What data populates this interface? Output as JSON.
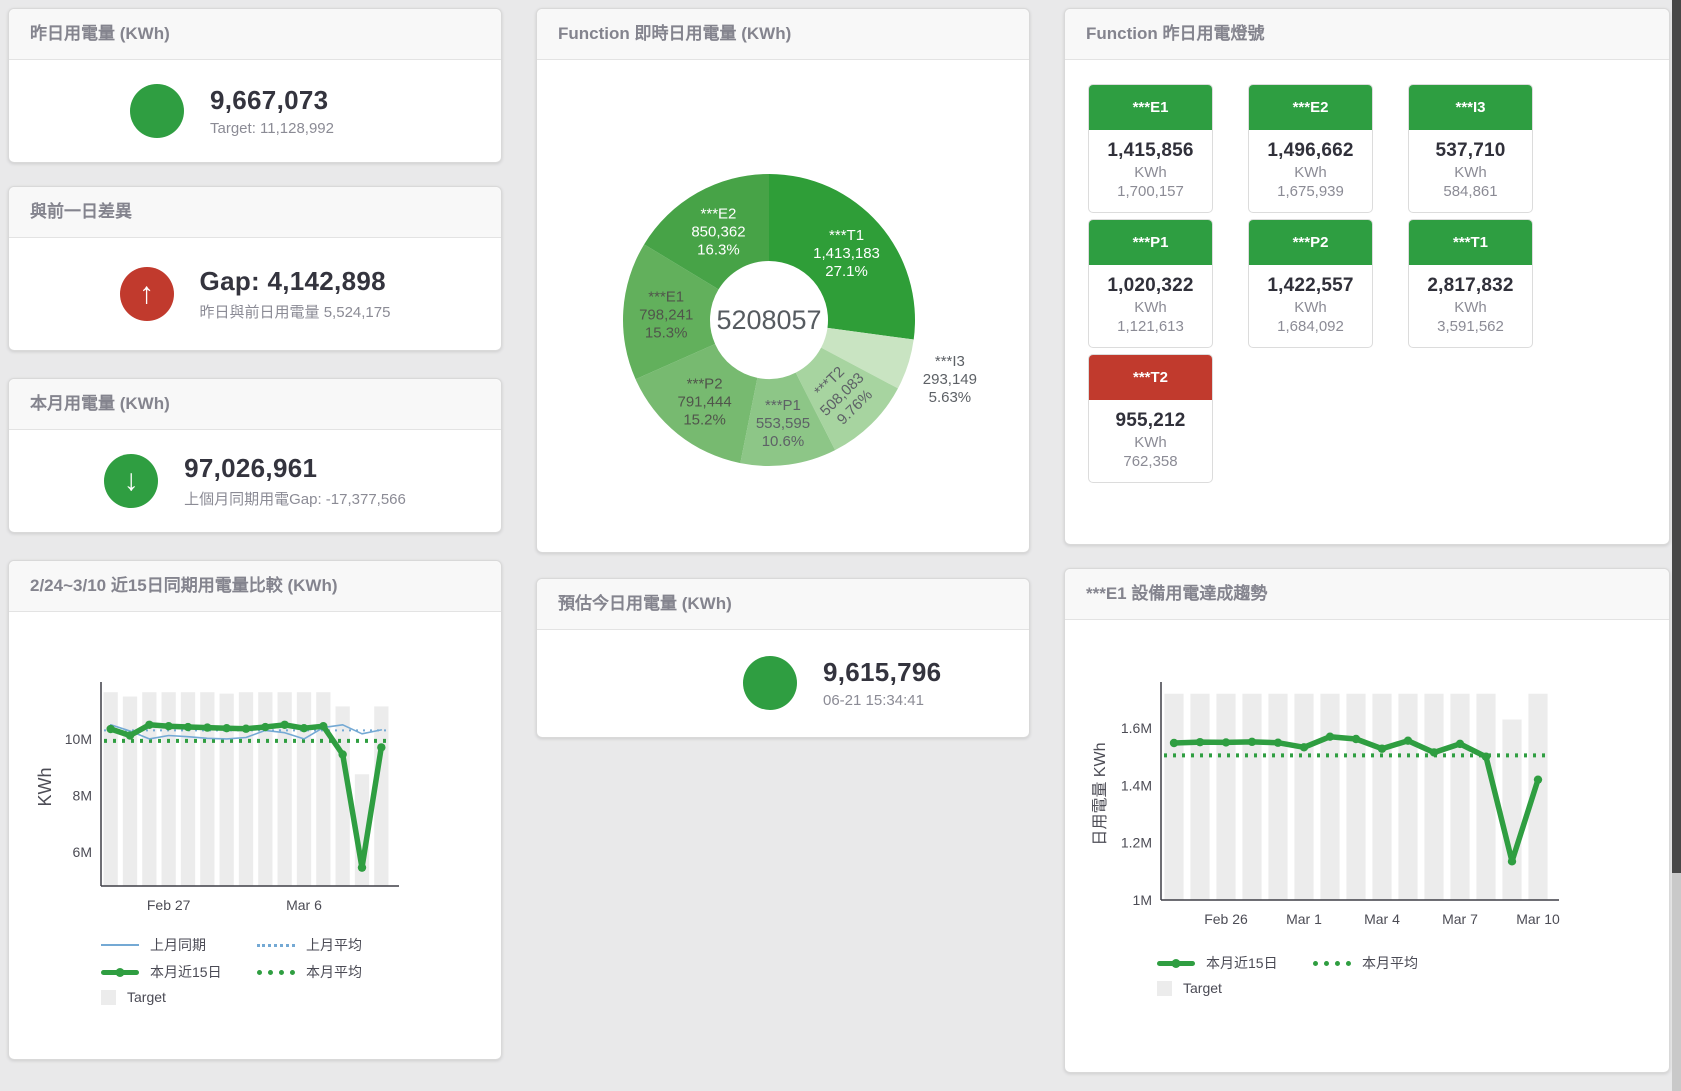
{
  "kpis": {
    "yesterday": {
      "title": "昨日用電量 (KWh)",
      "value": "9,667,073",
      "sub": "Target: 11,128,992",
      "status": "green",
      "icon_glyph": ""
    },
    "day_gap": {
      "title": "與前一日差異",
      "value": "Gap: 4,142,898",
      "sub": "昨日與前日用電量 5,524,175",
      "status": "red",
      "icon_glyph": "↑"
    },
    "month": {
      "title": "本月用電量 (KWh)",
      "value": "97,026,961",
      "sub": "上個月同期用電Gap: -17,377,566",
      "status": "green",
      "icon_glyph": "↓"
    },
    "forecast": {
      "title": "預估今日用電量 (KWh)",
      "value": "9,615,796",
      "sub": "06-21 15:34:41",
      "status": "green",
      "icon_glyph": ""
    }
  },
  "donut_card": {
    "title": "Function 即時日用電量 (KWh)"
  },
  "compare_card": {
    "title": "2/24~3/10 近15日同期用電量比較 (KWh)",
    "legend": [
      {
        "label": "上月同期"
      },
      {
        "label": "上月平均"
      },
      {
        "label": "本月近15日"
      },
      {
        "label": "本月平均"
      },
      {
        "label": "Target"
      }
    ]
  },
  "lights_card": {
    "title": "Function 昨日用電燈號",
    "unit": "KWh",
    "tiles": [
      {
        "name": "***E1",
        "value": "1,415,856",
        "target": "1,700,157",
        "status": "green"
      },
      {
        "name": "***E2",
        "value": "1,496,662",
        "target": "1,675,939",
        "status": "green"
      },
      {
        "name": "***I3",
        "value": "537,710",
        "target": "584,861",
        "status": "green"
      },
      {
        "name": "***P1",
        "value": "1,020,322",
        "target": "1,121,613",
        "status": "green"
      },
      {
        "name": "***P2",
        "value": "1,422,557",
        "target": "1,684,092",
        "status": "green"
      },
      {
        "name": "***T1",
        "value": "2,817,832",
        "target": "3,591,562",
        "status": "green"
      },
      {
        "name": "***T2",
        "value": "955,212",
        "target": "762,358",
        "status": "red"
      }
    ]
  },
  "trend_card": {
    "title": "***E1 設備用電達成趨勢",
    "legend": [
      {
        "label": "本月近15日"
      },
      {
        "label": "本月平均"
      },
      {
        "label": "Target"
      }
    ]
  },
  "colors": {
    "green": "#2f9e41",
    "red": "#c13a2d",
    "blue": "#74a9d4",
    "target_bar": "#ececec"
  },
  "chart_data": [
    {
      "id": "realtime-donut",
      "type": "pie",
      "title": "Function 即時日用電量 (KWh)",
      "center_total": "5208057",
      "segments": [
        {
          "label": "***T1",
          "value": 1413183,
          "display": "1,413,183",
          "pct": "27.1%",
          "color": "#2f9e38",
          "text_color": "#ffffff"
        },
        {
          "label": "***I3",
          "value": 293149,
          "display": "293,149",
          "pct": "5.63%",
          "color": "#c9e4c2",
          "text_color": "#5d6166",
          "placement": "outside"
        },
        {
          "label": "***T2",
          "value": 508083,
          "display": "508,083",
          "pct": "9.76%",
          "color": "#a7d4a0",
          "text_color": "#5d6166",
          "placement": "rotated"
        },
        {
          "label": "***P1",
          "value": 553595,
          "display": "553,595",
          "pct": "10.6%",
          "color": "#8dc687",
          "text_color": "#5d6166"
        },
        {
          "label": "***P2",
          "value": 791444,
          "display": "791,444",
          "pct": "15.2%",
          "color": "#77ba70",
          "text_color": "#50554b"
        },
        {
          "label": "***E1",
          "value": 798241,
          "display": "798,241",
          "pct": "15.3%",
          "color": "#62b05c",
          "text_color": "#50554b"
        },
        {
          "label": "***E2",
          "value": 850362,
          "display": "850,362",
          "pct": "16.3%",
          "color": "#47a347",
          "text_color": "#ffffff"
        }
      ]
    },
    {
      "id": "compare-chart",
      "type": "line",
      "title": "2/24~3/10 近15日同期用電量比較 (KWh)",
      "ylabel": "KWh",
      "x": [
        "Feb 24",
        "Feb 25",
        "Feb 26",
        "Feb 27",
        "Feb 28",
        "Mar 1",
        "Mar 2",
        "Mar 3",
        "Mar 4",
        "Mar 5",
        "Mar 6",
        "Mar 7",
        "Mar 8",
        "Mar 9",
        "Mar 10"
      ],
      "xticks": [
        {
          "i": 3,
          "label": "Feb 27"
        },
        {
          "i": 10,
          "label": "Mar 6"
        }
      ],
      "ylim": [
        4.8,
        11.8
      ],
      "yticks": [
        {
          "v": 6,
          "label": "6M"
        },
        {
          "v": 8,
          "label": "8M"
        },
        {
          "v": 10,
          "label": "10M"
        }
      ],
      "unit_scale": "millions of KWh",
      "target": {
        "name": "Target",
        "color": "#ececec",
        "values": [
          11.65,
          11.5,
          11.65,
          11.65,
          11.65,
          11.65,
          11.6,
          11.65,
          11.65,
          11.65,
          11.65,
          11.65,
          11.15,
          8.75,
          11.15
        ]
      },
      "series": [
        {
          "name": "上月同期",
          "color": "#74a9d4",
          "width": 1.6,
          "values": [
            10.5,
            10.28,
            10.0,
            10.12,
            10.08,
            10.02,
            10.0,
            10.05,
            10.3,
            10.22,
            10.0,
            10.4,
            10.5,
            10.18,
            10.32
          ]
        },
        {
          "name": "上月平均",
          "color": "#74a9d4",
          "width": 2,
          "dash": "2 5",
          "value": 10.3
        },
        {
          "name": "本月近15日",
          "color": "#2f9e41",
          "width": 5.5,
          "marker": true,
          "values": [
            10.35,
            10.12,
            10.5,
            10.45,
            10.42,
            10.4,
            10.38,
            10.36,
            10.42,
            10.5,
            10.38,
            10.45,
            9.45,
            5.45,
            9.7
          ]
        },
        {
          "name": "本月平均",
          "color": "#2f9e41",
          "width": 4,
          "dash": "3 6",
          "value": 9.93
        }
      ]
    },
    {
      "id": "trend-chart",
      "type": "line",
      "title": "***E1 設備用電達成趨勢",
      "ylabel": "日用電量 KWh",
      "x": [
        "Feb 24",
        "Feb 25",
        "Feb 26",
        "Feb 27",
        "Feb 28",
        "Mar 1",
        "Mar 2",
        "Mar 3",
        "Mar 4",
        "Mar 5",
        "Mar 6",
        "Mar 7",
        "Mar 8",
        "Mar 9",
        "Mar 10"
      ],
      "xticks": [
        {
          "i": 2,
          "label": "Feb 26"
        },
        {
          "i": 5,
          "label": "Mar 1"
        },
        {
          "i": 8,
          "label": "Mar 4"
        },
        {
          "i": 11,
          "label": "Mar 7"
        },
        {
          "i": 14,
          "label": "Mar 10"
        }
      ],
      "ylim": [
        1.0,
        1.74
      ],
      "yticks": [
        {
          "v": 1,
          "label": "1M"
        },
        {
          "v": 1.2,
          "label": "1.2M"
        },
        {
          "v": 1.4,
          "label": "1.4M"
        },
        {
          "v": 1.6,
          "label": "1.6M"
        }
      ],
      "unit_scale": "millions of KWh",
      "target": {
        "name": "Target",
        "color": "#ececec",
        "values": [
          1.72,
          1.72,
          1.72,
          1.72,
          1.72,
          1.72,
          1.72,
          1.72,
          1.72,
          1.72,
          1.72,
          1.72,
          1.72,
          1.63,
          1.72
        ]
      },
      "series": [
        {
          "name": "本月近15日",
          "color": "#2f9e41",
          "width": 5.5,
          "marker": true,
          "values": [
            1.548,
            1.551,
            1.55,
            1.552,
            1.549,
            1.533,
            1.57,
            1.562,
            1.528,
            1.556,
            1.515,
            1.545,
            1.5,
            1.135,
            1.42
          ]
        },
        {
          "name": "本月平均",
          "color": "#2f9e41",
          "width": 4,
          "dash": "3 6",
          "value": 1.505
        }
      ]
    }
  ]
}
